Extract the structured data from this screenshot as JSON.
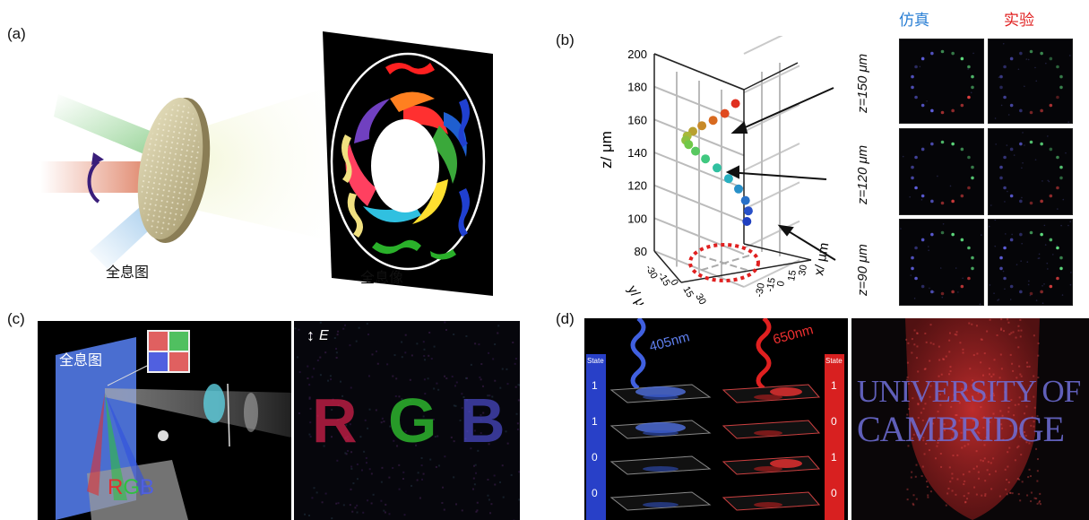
{
  "panels": {
    "a": {
      "label": "(a)",
      "hologram_caption": "全息图",
      "image_caption": "全息像"
    },
    "b": {
      "label": "(b)",
      "header_sim": "仿真",
      "header_exp": "实验",
      "header_sim_color": "#2a7fd4",
      "header_exp_color": "#e02020",
      "z_rows": [
        "z=150 μm",
        "z=120 μm",
        "z=90 μm"
      ]
    },
    "c": {
      "label": "(c)",
      "hologram_label": "全息图",
      "rgb_letters": [
        "R",
        "G",
        "B"
      ],
      "field_label": "E"
    },
    "d": {
      "label": "(d)",
      "wave_blue": "405nm",
      "wave_red": "650nm",
      "state_title": "State",
      "blue_states": [
        "1",
        "1",
        "0",
        "0"
      ],
      "red_states": [
        "1",
        "0",
        "1",
        "0"
      ],
      "logo_line1": "UNIVERSITY OF",
      "logo_line2": "CAMBRIDGE"
    }
  },
  "chart_data": {
    "type": "scatter",
    "zlabel": "z/ μm",
    "xlabel": "x/ μm",
    "ylabel": "y/ μm",
    "zticks": [
      80,
      100,
      120,
      140,
      160,
      180,
      200
    ],
    "yticks": [
      -30,
      -15,
      0,
      15,
      30
    ],
    "xticks": [
      -30,
      -15,
      0,
      15,
      30
    ],
    "zlim": [
      80,
      200
    ],
    "points": [
      {
        "z": 175,
        "color": "#e03020"
      },
      {
        "z": 170,
        "color": "#e04a20"
      },
      {
        "z": 166,
        "color": "#d86a20"
      },
      {
        "z": 162,
        "color": "#c88a28"
      },
      {
        "z": 157,
        "color": "#b8a030"
      },
      {
        "z": 152,
        "color": "#a8b838"
      },
      {
        "z": 147,
        "color": "#8ec040"
      },
      {
        "z": 142,
        "color": "#70c848"
      },
      {
        "z": 136,
        "color": "#58c860"
      },
      {
        "z": 130,
        "color": "#40c880"
      },
      {
        "z": 124,
        "color": "#30c0a0"
      },
      {
        "z": 118,
        "color": "#28b0c0"
      },
      {
        "z": 113,
        "color": "#2890c8"
      },
      {
        "z": 108,
        "color": "#2870c8"
      },
      {
        "z": 104,
        "color": "#2850c8"
      },
      {
        "z": 100,
        "color": "#2040c0"
      }
    ]
  }
}
